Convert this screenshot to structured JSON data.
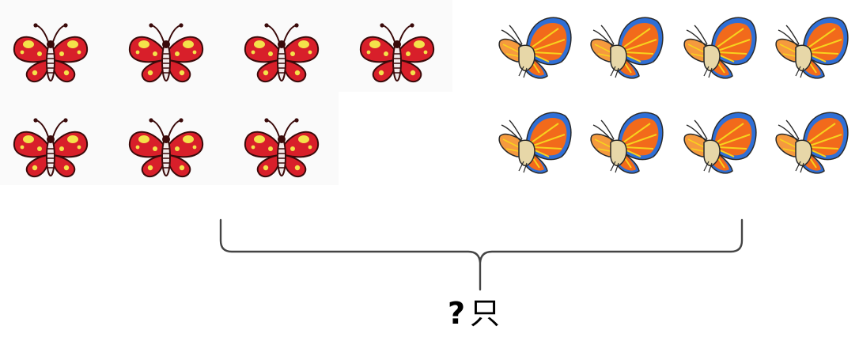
{
  "caption": {
    "question": "?",
    "unit": "只"
  },
  "groups": [
    {
      "name": "red-butterflies",
      "count": 7,
      "colors": {
        "wing": "#d81f2a",
        "spot": "#f4e24a",
        "outline": "#3a0a0a"
      }
    },
    {
      "name": "orange-butterflies",
      "count": 8,
      "colors": {
        "wing": "#f26a1b",
        "edge": "#2f6fd6",
        "vein": "#f7d21e",
        "outline": "#2a2a2a"
      }
    }
  ],
  "colors": {
    "brace": "#444444",
    "text": "#000000"
  }
}
